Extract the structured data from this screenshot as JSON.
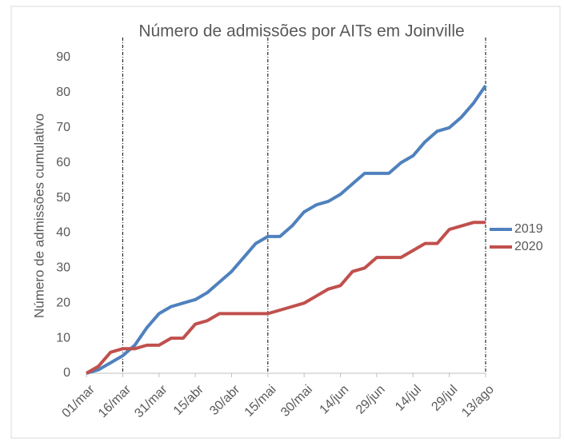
{
  "chart_data": {
    "type": "line",
    "title": "Número de admissões por AITs em Joinville",
    "y_label": "Número de admissões cumulativo",
    "x": [
      0,
      5,
      10,
      15,
      20,
      25,
      30,
      35,
      40,
      45,
      50,
      55,
      60,
      65,
      70,
      75,
      80,
      85,
      90,
      95,
      100,
      105,
      110,
      115,
      120,
      125,
      130,
      135,
      140,
      145,
      150,
      155,
      160,
      165
    ],
    "series": [
      {
        "name": "2019",
        "color": "#4f81bd",
        "values": [
          0,
          1,
          3,
          5,
          8,
          13,
          17,
          19,
          20,
          21,
          23,
          26,
          29,
          33,
          37,
          39,
          39,
          42,
          46,
          48,
          49,
          51,
          54,
          57,
          57,
          57,
          60,
          62,
          66,
          69,
          70,
          73,
          77,
          82
        ]
      },
      {
        "name": "2020",
        "color": "#c0504d",
        "values": [
          0,
          2,
          6,
          7,
          7,
          8,
          8,
          10,
          10,
          14,
          15,
          17,
          17,
          17,
          17,
          17,
          18,
          19,
          20,
          22,
          24,
          25,
          29,
          30,
          33,
          33,
          33,
          35,
          37,
          37,
          41,
          42,
          43,
          43
        ]
      }
    ],
    "xlim": [
      0,
      165
    ],
    "xticks": [
      {
        "value": 0,
        "label": "01/mar"
      },
      {
        "value": 15,
        "label": "16/mar"
      },
      {
        "value": 30,
        "label": "31/mar"
      },
      {
        "value": 45,
        "label": "15/abr"
      },
      {
        "value": 60,
        "label": "30/abr"
      },
      {
        "value": 75,
        "label": "15/mai"
      },
      {
        "value": 90,
        "label": "30/mai"
      },
      {
        "value": 105,
        "label": "14/jun"
      },
      {
        "value": 120,
        "label": "29/jun"
      },
      {
        "value": 135,
        "label": "14/jul"
      },
      {
        "value": 150,
        "label": "29/jul"
      },
      {
        "value": 165,
        "label": "13/ago"
      }
    ],
    "ylim": [
      0,
      90
    ],
    "yticks": [
      0,
      10,
      20,
      30,
      40,
      50,
      60,
      70,
      80,
      90
    ],
    "vlines": [
      15,
      75,
      165
    ],
    "grid": false,
    "legend": "right"
  }
}
